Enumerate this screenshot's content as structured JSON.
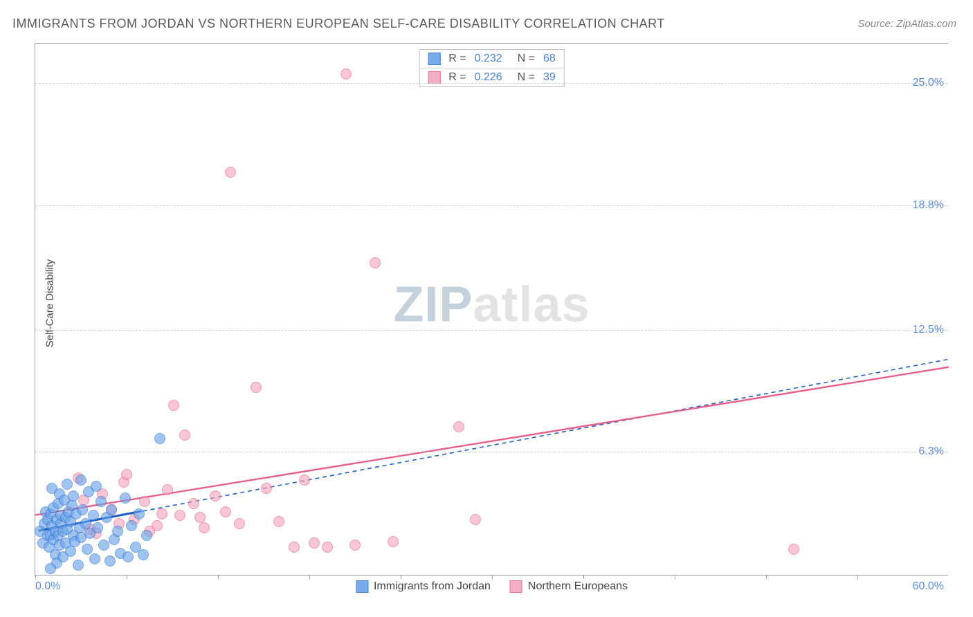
{
  "title": "IMMIGRANTS FROM JORDAN VS NORTHERN EUROPEAN SELF-CARE DISABILITY CORRELATION CHART",
  "source": "Source: ZipAtlas.com",
  "chart": {
    "type": "scatter",
    "ylabel": "Self-Care Disability",
    "xlim": [
      0,
      60
    ],
    "ylim": [
      0,
      27
    ],
    "xlim_labels": [
      "0.0%",
      "60.0%"
    ],
    "xtick_positions": [
      0,
      6,
      12,
      18,
      24,
      30,
      36,
      42,
      48,
      54
    ],
    "yticks": [
      {
        "v": 6.3,
        "label": "6.3%"
      },
      {
        "v": 12.5,
        "label": "12.5%"
      },
      {
        "v": 18.8,
        "label": "18.8%"
      },
      {
        "v": 25.0,
        "label": "25.0%"
      }
    ],
    "grid_color": "#d0d0d0",
    "axis_color": "#9a9a9a",
    "ylabel_color": "#5b8dd6",
    "point_radius": 8,
    "point_fill_opacity": 0.28,
    "series_a": {
      "label": "Immigrants from Jordan",
      "r": "0.232",
      "n": "68",
      "color_fill": "#6aa3e8",
      "color_stroke": "#2f6fd0",
      "trend_color": "#1f5fc0",
      "trend_dash": "6 5",
      "trend_width": 1.6,
      "trend": {
        "x1": 0.2,
        "y1": 2.3,
        "x2": 60,
        "y2": 11.0
      },
      "solid_segment": {
        "x1": 0.2,
        "y1": 2.3,
        "x2": 7.0,
        "y2": 3.3
      },
      "points": [
        [
          0.3,
          2.2
        ],
        [
          0.5,
          1.6
        ],
        [
          0.6,
          2.6
        ],
        [
          0.7,
          3.2
        ],
        [
          0.8,
          2.0
        ],
        [
          0.8,
          2.8
        ],
        [
          0.9,
          1.4
        ],
        [
          1.0,
          3.1
        ],
        [
          1.0,
          2.0
        ],
        [
          1.1,
          4.4
        ],
        [
          1.1,
          2.5
        ],
        [
          1.2,
          1.8
        ],
        [
          1.2,
          3.4
        ],
        [
          1.3,
          2.2
        ],
        [
          1.3,
          1.0
        ],
        [
          1.4,
          2.8
        ],
        [
          1.4,
          0.6
        ],
        [
          1.5,
          3.6
        ],
        [
          1.5,
          2.0
        ],
        [
          1.6,
          4.1
        ],
        [
          1.6,
          1.5
        ],
        [
          1.7,
          2.6
        ],
        [
          1.7,
          3.0
        ],
        [
          1.8,
          0.9
        ],
        [
          1.8,
          2.2
        ],
        [
          1.9,
          3.8
        ],
        [
          2.0,
          1.6
        ],
        [
          2.0,
          2.9
        ],
        [
          2.1,
          4.6
        ],
        [
          2.1,
          2.3
        ],
        [
          2.2,
          3.2
        ],
        [
          2.3,
          1.2
        ],
        [
          2.3,
          2.7
        ],
        [
          2.4,
          3.5
        ],
        [
          2.5,
          4.0
        ],
        [
          2.5,
          2.0
        ],
        [
          2.6,
          1.7
        ],
        [
          2.7,
          3.1
        ],
        [
          2.8,
          0.5
        ],
        [
          2.9,
          2.4
        ],
        [
          3.0,
          4.8
        ],
        [
          3.0,
          1.9
        ],
        [
          3.1,
          3.3
        ],
        [
          3.3,
          2.6
        ],
        [
          3.4,
          1.3
        ],
        [
          3.5,
          4.2
        ],
        [
          3.6,
          2.1
        ],
        [
          3.8,
          3.0
        ],
        [
          3.9,
          0.8
        ],
        [
          4.0,
          4.5
        ],
        [
          4.1,
          2.4
        ],
        [
          4.3,
          3.7
        ],
        [
          4.5,
          1.5
        ],
        [
          4.7,
          2.9
        ],
        [
          4.9,
          0.7
        ],
        [
          5.0,
          3.3
        ],
        [
          5.2,
          1.8
        ],
        [
          5.4,
          2.2
        ],
        [
          5.6,
          1.1
        ],
        [
          5.9,
          3.9
        ],
        [
          6.1,
          0.9
        ],
        [
          6.3,
          2.5
        ],
        [
          6.6,
          1.4
        ],
        [
          6.8,
          3.1
        ],
        [
          7.1,
          1.0
        ],
        [
          7.3,
          2.0
        ],
        [
          1.0,
          0.3
        ],
        [
          8.2,
          6.9
        ]
      ]
    },
    "series_b": {
      "label": "Northern Europeans",
      "r": "0.226",
      "n": "39",
      "color_fill": "#f4a6be",
      "color_stroke": "#e85f8b",
      "trend_color": "#e85f8b",
      "trend_dash": "",
      "trend_width": 2.4,
      "trend": {
        "x1": 0.0,
        "y1": 3.1,
        "x2": 60,
        "y2": 10.6
      },
      "points": [
        [
          2.8,
          4.9
        ],
        [
          3.6,
          2.3
        ],
        [
          4.4,
          4.1
        ],
        [
          5.0,
          3.3
        ],
        [
          5.8,
          4.7
        ],
        [
          6.5,
          2.8
        ],
        [
          7.2,
          3.7
        ],
        [
          8.0,
          2.5
        ],
        [
          8.7,
          4.3
        ],
        [
          9.1,
          8.6
        ],
        [
          9.5,
          3.0
        ],
        [
          9.8,
          7.1
        ],
        [
          10.4,
          3.6
        ],
        [
          11.1,
          2.4
        ],
        [
          11.8,
          4.0
        ],
        [
          12.8,
          20.4
        ],
        [
          14.5,
          9.5
        ],
        [
          15.2,
          4.4
        ],
        [
          16.0,
          2.7
        ],
        [
          17.0,
          1.4
        ],
        [
          17.7,
          4.8
        ],
        [
          18.3,
          1.6
        ],
        [
          19.2,
          1.4
        ],
        [
          20.4,
          25.4
        ],
        [
          21.0,
          1.5
        ],
        [
          22.3,
          15.8
        ],
        [
          23.5,
          1.7
        ],
        [
          27.8,
          7.5
        ],
        [
          28.9,
          2.8
        ],
        [
          49.8,
          1.3
        ],
        [
          3.2,
          3.8
        ],
        [
          4.0,
          2.1
        ],
        [
          6.0,
          5.1
        ],
        [
          7.5,
          2.2
        ],
        [
          10.8,
          2.9
        ],
        [
          12.5,
          3.2
        ],
        [
          13.4,
          2.6
        ],
        [
          8.3,
          3.1
        ],
        [
          5.5,
          2.6
        ]
      ]
    }
  }
}
